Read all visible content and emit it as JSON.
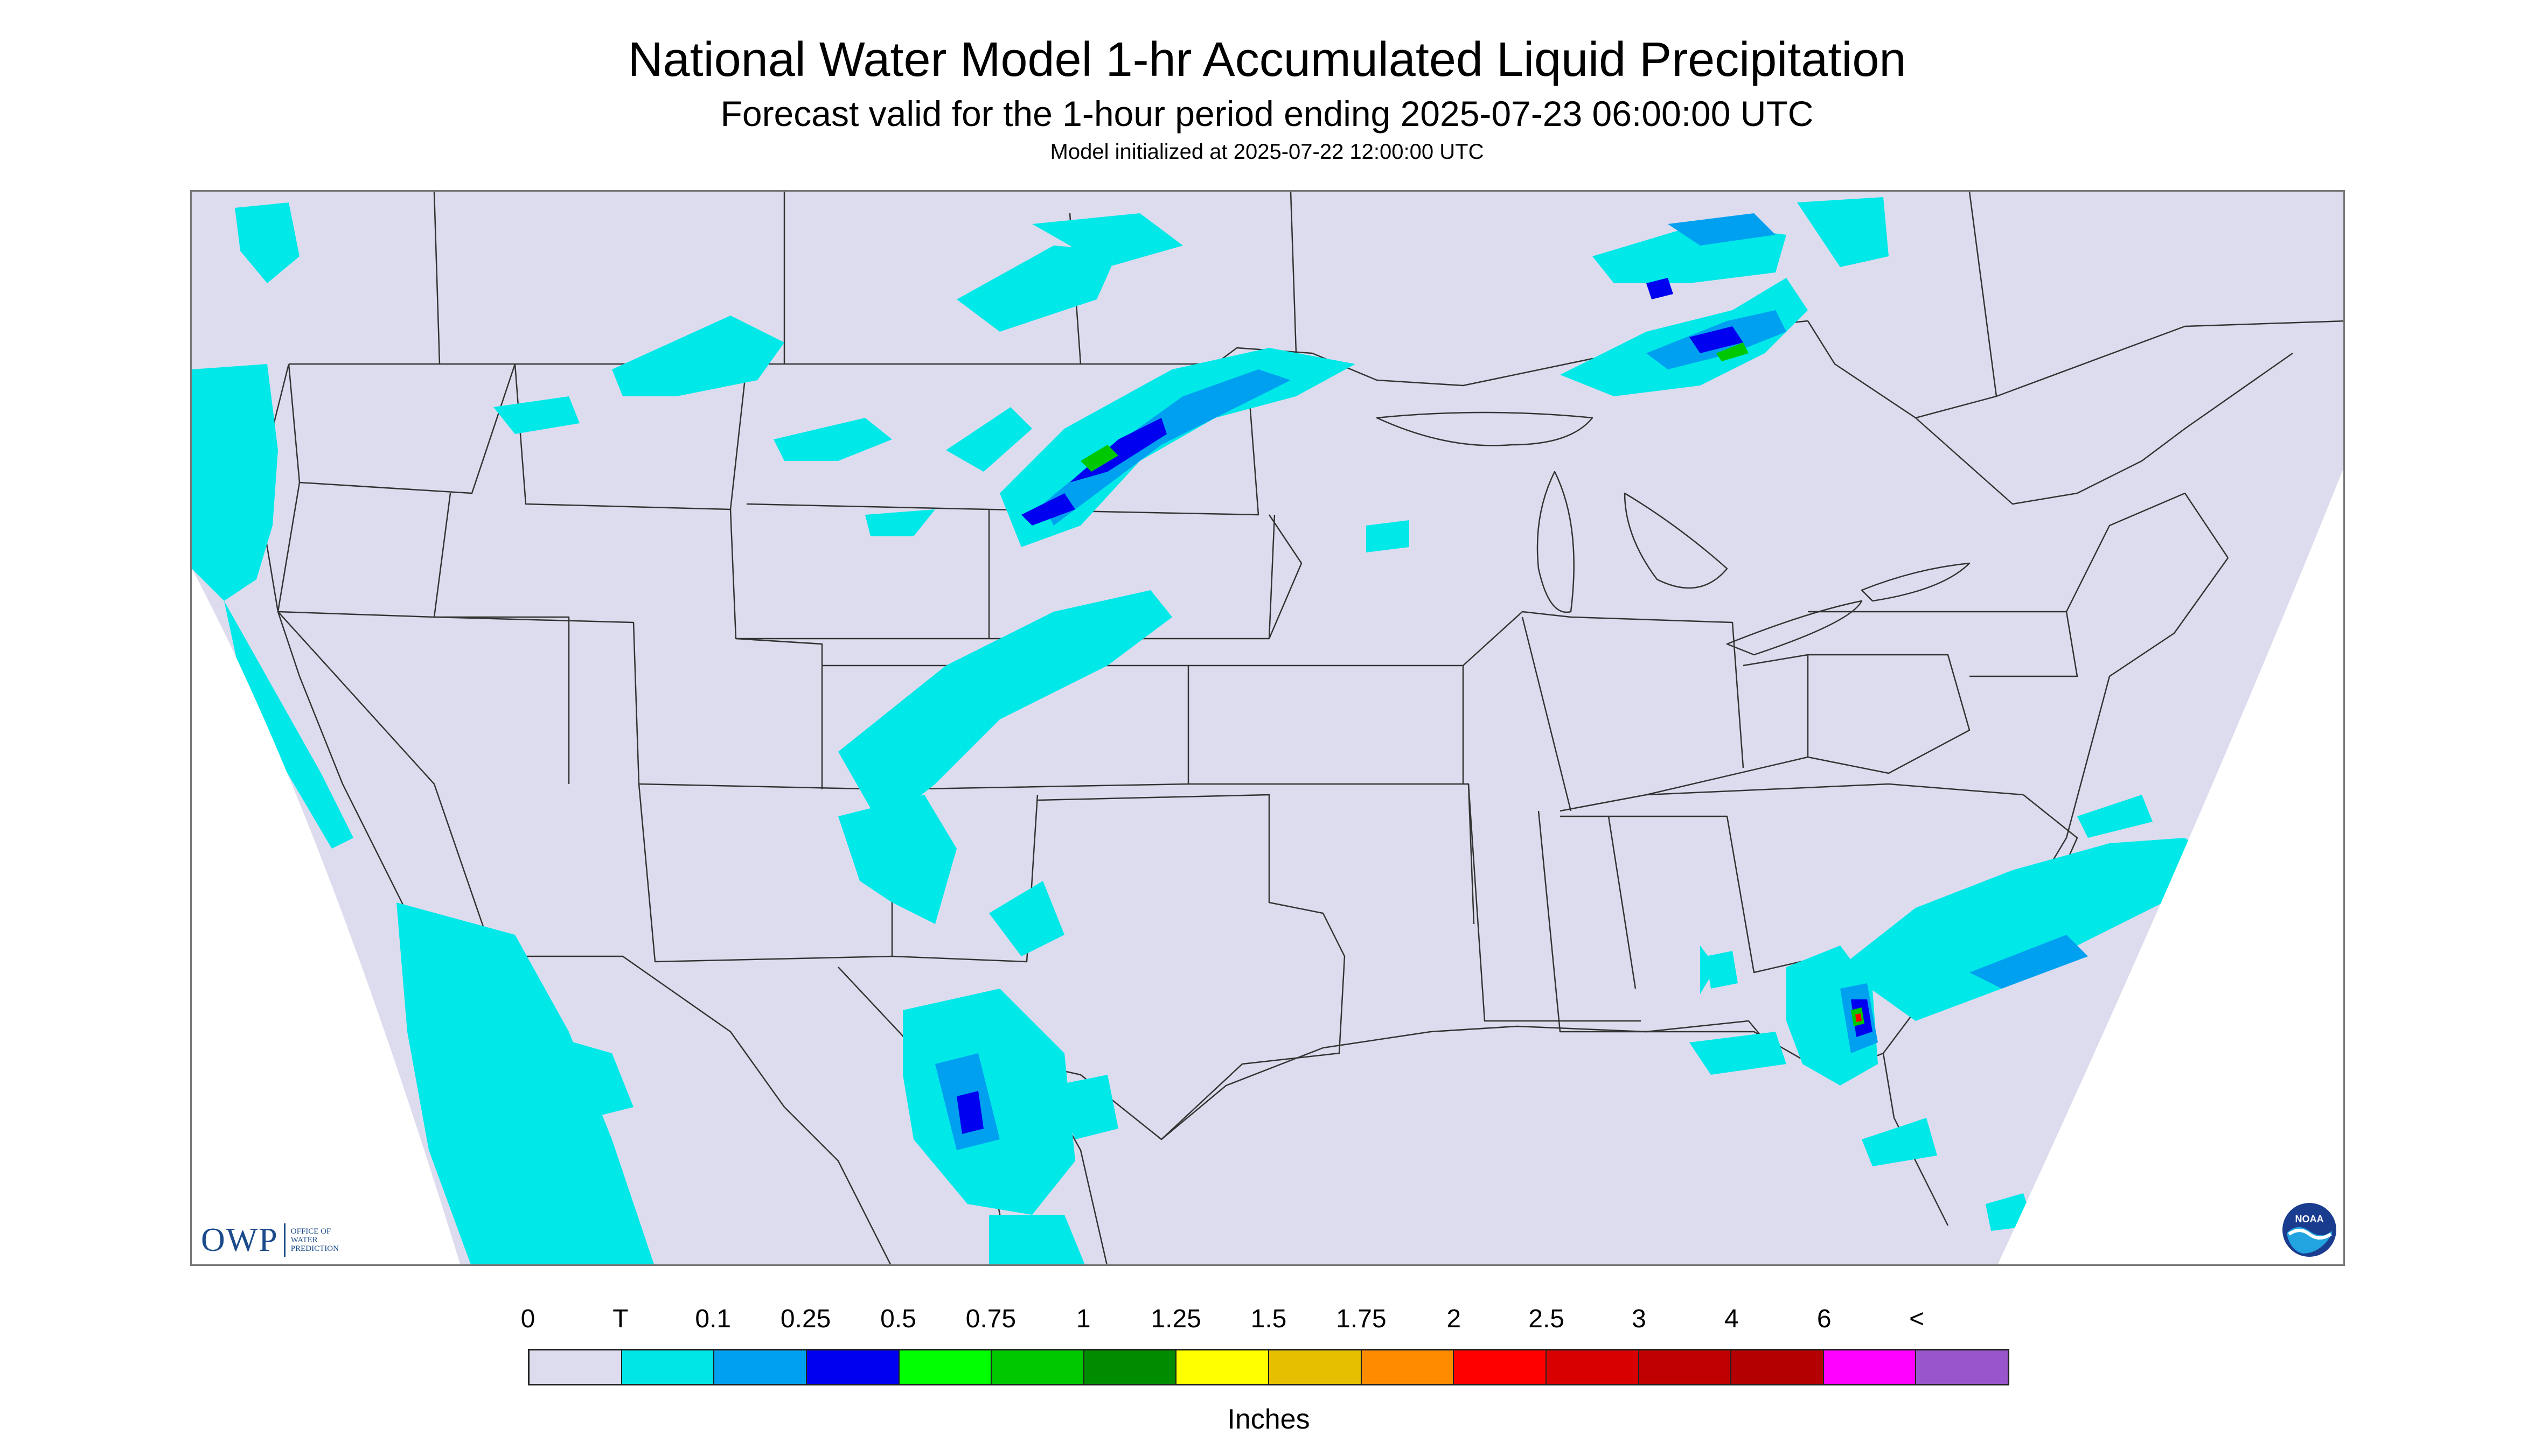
{
  "header": {
    "title": "National Water Model 1-hr Accumulated Liquid Precipitation",
    "subtitle": "Forecast valid for the 1-hour period ending 2025-07-23 06:00:00 UTC",
    "init": "Model initialized at 2025-07-22 12:00:00 UTC"
  },
  "map": {
    "background_color": "#dcdcee",
    "outside_color": "#ffffff",
    "boundary_color": "#333333",
    "precip_colors": {
      "trace": "#00e8e8",
      "light": "#00a0f0",
      "moderate": "#0000f0",
      "heavy": "#00ff00",
      "heavier": "#00c800",
      "dark_green": "#008c00",
      "yellow": "#ffff00",
      "red": "#ff0000"
    }
  },
  "legend": {
    "labels": [
      "0",
      "T",
      "0.1",
      "0.25",
      "0.5",
      "0.75",
      "1",
      "1.25",
      "1.5",
      "1.75",
      "2",
      "2.5",
      "3",
      "4",
      "6",
      "<"
    ],
    "colors": [
      "#dcdcee",
      "#00e6e6",
      "#00a0f0",
      "#0000f0",
      "#00ff00",
      "#00c800",
      "#008c00",
      "#ffff00",
      "#e6c000",
      "#ff8c00",
      "#ff0000",
      "#d80000",
      "#c00000",
      "#b40000",
      "#ff00ff",
      "#9955cc"
    ],
    "units": "Inches"
  },
  "logos": {
    "owp_text": "OWP",
    "owp_sub_1": "OFFICE OF",
    "owp_sub_2": "WATER",
    "owp_sub_3": "PREDICTION",
    "owp_icon": "owp-logo",
    "noaa_icon": "noaa-logo",
    "noaa_text": "NOAA"
  }
}
